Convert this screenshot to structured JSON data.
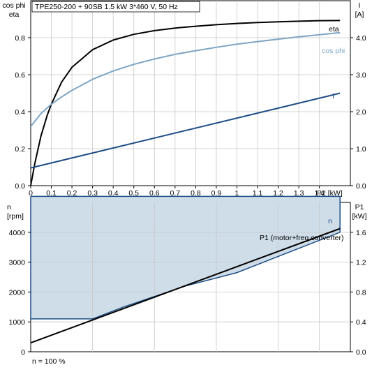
{
  "chart_data": [
    {
      "type": "line",
      "title": "TPE250-200 + 90SB   1.5 kW   3*460 V, 50 Hz",
      "ylabel_left": [
        "cos phi",
        "eta"
      ],
      "ylabel_right": [
        "I",
        "[A]"
      ],
      "xunit": "P2 [kW]",
      "xlim": [
        0,
        1.55
      ],
      "ylim_left": [
        0,
        1.0
      ],
      "ylim_right": [
        0,
        5.0
      ],
      "xticks": [
        0,
        0.1,
        0.2,
        0.3,
        0.4,
        0.5,
        0.6,
        0.7,
        0.8,
        0.9,
        1,
        1.1,
        1.2,
        1.3,
        1.4
      ],
      "xtick_labels": [
        "0",
        "0.1",
        "0.2",
        "0.3",
        "0.4",
        "0.5",
        "0.6",
        "0.7",
        "0.8",
        "0.9",
        "1",
        "1.1",
        "1.2",
        "1.3",
        "1.4"
      ],
      "yticks_left": [
        "0.0",
        "0.2",
        "0.4",
        "0.6",
        "0.8"
      ],
      "yticks_right": [
        "0.0",
        "1.0",
        "2.0",
        "3.0",
        "4.0"
      ],
      "grid": true,
      "series": [
        {
          "name": "eta",
          "axis": "left",
          "color": "#000000",
          "x": [
            0,
            0.02,
            0.05,
            0.08,
            0.1,
            0.15,
            0.2,
            0.3,
            0.4,
            0.5,
            0.6,
            0.7,
            0.8,
            0.9,
            1.0,
            1.1,
            1.2,
            1.3,
            1.4,
            1.5
          ],
          "y": [
            0,
            0.12,
            0.27,
            0.38,
            0.44,
            0.56,
            0.64,
            0.735,
            0.787,
            0.818,
            0.838,
            0.852,
            0.862,
            0.87,
            0.877,
            0.882,
            0.886,
            0.889,
            0.892,
            0.893
          ]
        },
        {
          "name": "cos phi",
          "axis": "left",
          "color": "#7ea5c4",
          "x": [
            0,
            0.05,
            0.1,
            0.15,
            0.2,
            0.3,
            0.4,
            0.5,
            0.6,
            0.7,
            0.8,
            0.9,
            1.0,
            1.1,
            1.2,
            1.3,
            1.4,
            1.5
          ],
          "y": [
            0.32,
            0.39,
            0.44,
            0.48,
            0.515,
            0.575,
            0.62,
            0.656,
            0.685,
            0.71,
            0.73,
            0.748,
            0.765,
            0.779,
            0.792,
            0.805,
            0.816,
            0.827
          ]
        },
        {
          "name": "I",
          "axis": "right",
          "color": "#1f4e85",
          "x": [
            0,
            1.5
          ],
          "y": [
            0.48,
            2.5
          ]
        }
      ]
    },
    {
      "type": "area",
      "ylabel_left": [
        "n",
        "[rpm]"
      ],
      "ylabel_right": [
        "P1",
        "[kW]"
      ],
      "xlim": [
        0,
        1.55
      ],
      "ylim_left": [
        0,
        5000
      ],
      "ylim_right": [
        0,
        2.0
      ],
      "yticks_left": [
        "0",
        "1000",
        "2000",
        "3000",
        "4000"
      ],
      "yticks_right": [
        "0.0",
        "0.4",
        "0.8",
        "1.2",
        "1.6"
      ],
      "grid": true,
      "annotations": [
        "n",
        "P1 (motor+freq.converter)"
      ],
      "footer": "n = 100 %",
      "series": [
        {
          "name": "n",
          "axis": "left",
          "color": "#1f4e85",
          "fill": "#cfdde9",
          "x_upper": [
            0,
            1.5
          ],
          "y_upper": [
            5200,
            5200
          ],
          "x_lower": [
            0,
            0.3,
            0.45,
            0.75,
            1.0,
            1.5
          ],
          "y_lower": [
            1100,
            1100,
            1500,
            2200,
            2650,
            4000
          ]
        },
        {
          "name": "P1 (motor+freq.converter)",
          "axis": "right",
          "color": "#000000",
          "x": [
            0,
            1.5
          ],
          "y": [
            0.12,
            1.65
          ]
        }
      ]
    }
  ]
}
